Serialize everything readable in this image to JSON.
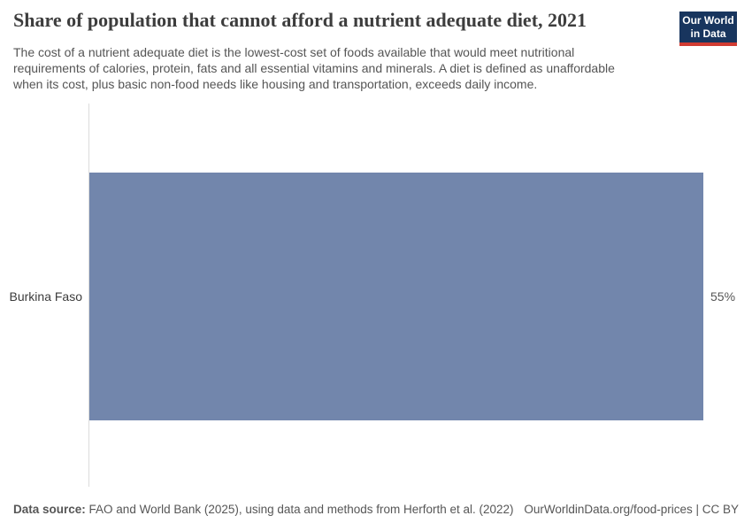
{
  "header": {
    "title": "Share of population that cannot afford a nutrient adequate diet, 2021",
    "subtitle_lines": [
      "The cost of a nutrient adequate diet is the lowest-cost set of foods available that would meet nutritional",
      "requirements of calories, protein, fats and all essential vitamins and minerals. A diet is defined as unaffordable",
      "when its cost, plus basic non-food needs like housing and transportation, exceeds daily income."
    ],
    "logo": {
      "line1": "Our World",
      "line2": "in Data"
    }
  },
  "chart_data": {
    "type": "bar",
    "orientation": "horizontal",
    "title": "Share of population that cannot afford a nutrient adequate diet, 2021",
    "categories": [
      "Burkina Faso"
    ],
    "values": [
      55
    ],
    "value_labels": [
      "55%"
    ],
    "unit": "%",
    "xlim": [
      0,
      55
    ],
    "grid": false,
    "legend": "none",
    "bar_color": "#7286ac"
  },
  "footer": {
    "data_source_label": "Data source:",
    "data_source_text": "FAO and World Bank (2025), using data and methods from Herforth et al. (2022)",
    "link_text": "OurWorldinData.org/food-prices | CC BY"
  },
  "colors": {
    "bar": "#7286ac",
    "logo_background": "#18355e",
    "logo_underline": "#d13b32",
    "axis_line": "#dcdcdc",
    "title_text": "#3d3d3d",
    "muted_text": "#565656"
  }
}
